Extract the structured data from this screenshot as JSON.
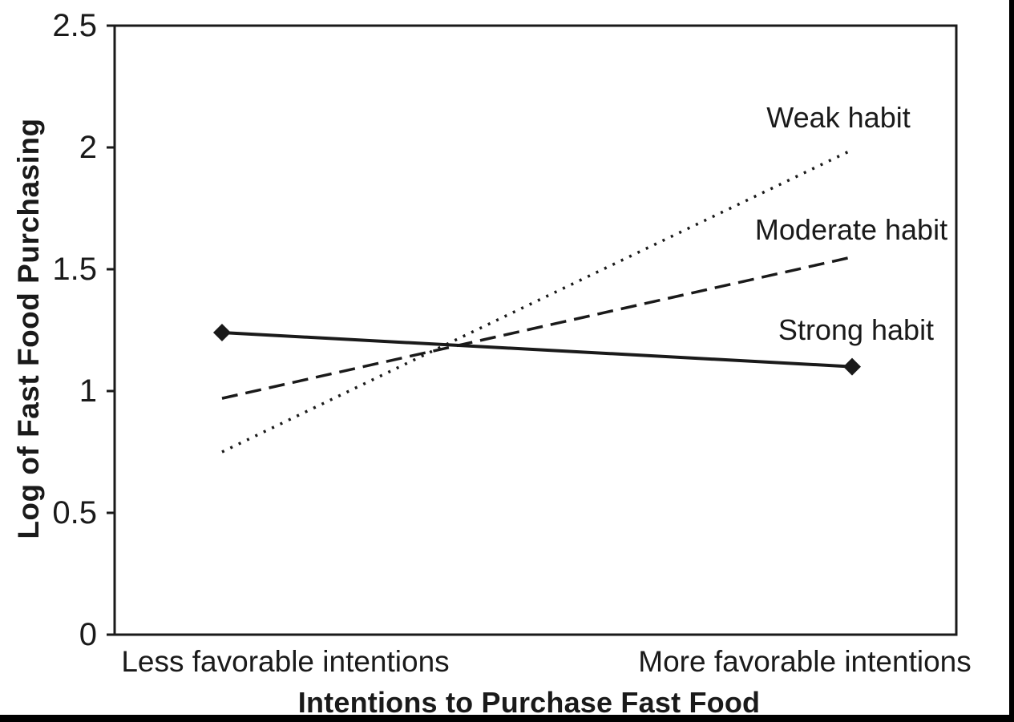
{
  "chart_data": {
    "type": "line",
    "title": "",
    "xlabel": "Intentions to Purchase Fast Food",
    "ylabel": "Log of Fast Food Purchasing",
    "categories": [
      "Less favorable intentions",
      "More favorable intentions"
    ],
    "ylim": [
      0,
      2.5
    ],
    "yticks": [
      0,
      0.5,
      1,
      1.5,
      2,
      2.5
    ],
    "ytick_labels_top_to_bottom": [
      "2.5",
      "2",
      "1.5",
      "1",
      "0.5",
      "0"
    ],
    "series": [
      {
        "name": "Weak habit",
        "values": [
          0.75,
          1.99
        ],
        "line_style": "dotted",
        "marker": "none"
      },
      {
        "name": "Moderate habit",
        "values": [
          0.97,
          1.55
        ],
        "line_style": "dashed",
        "marker": "none"
      },
      {
        "name": "Strong habit",
        "values": [
          1.24,
          1.1
        ],
        "line_style": "solid",
        "marker": "diamond"
      }
    ],
    "grid": false,
    "legend_position": "inline-right-of-lines",
    "line_color": "#1a1a1a",
    "frame": "full-box"
  }
}
